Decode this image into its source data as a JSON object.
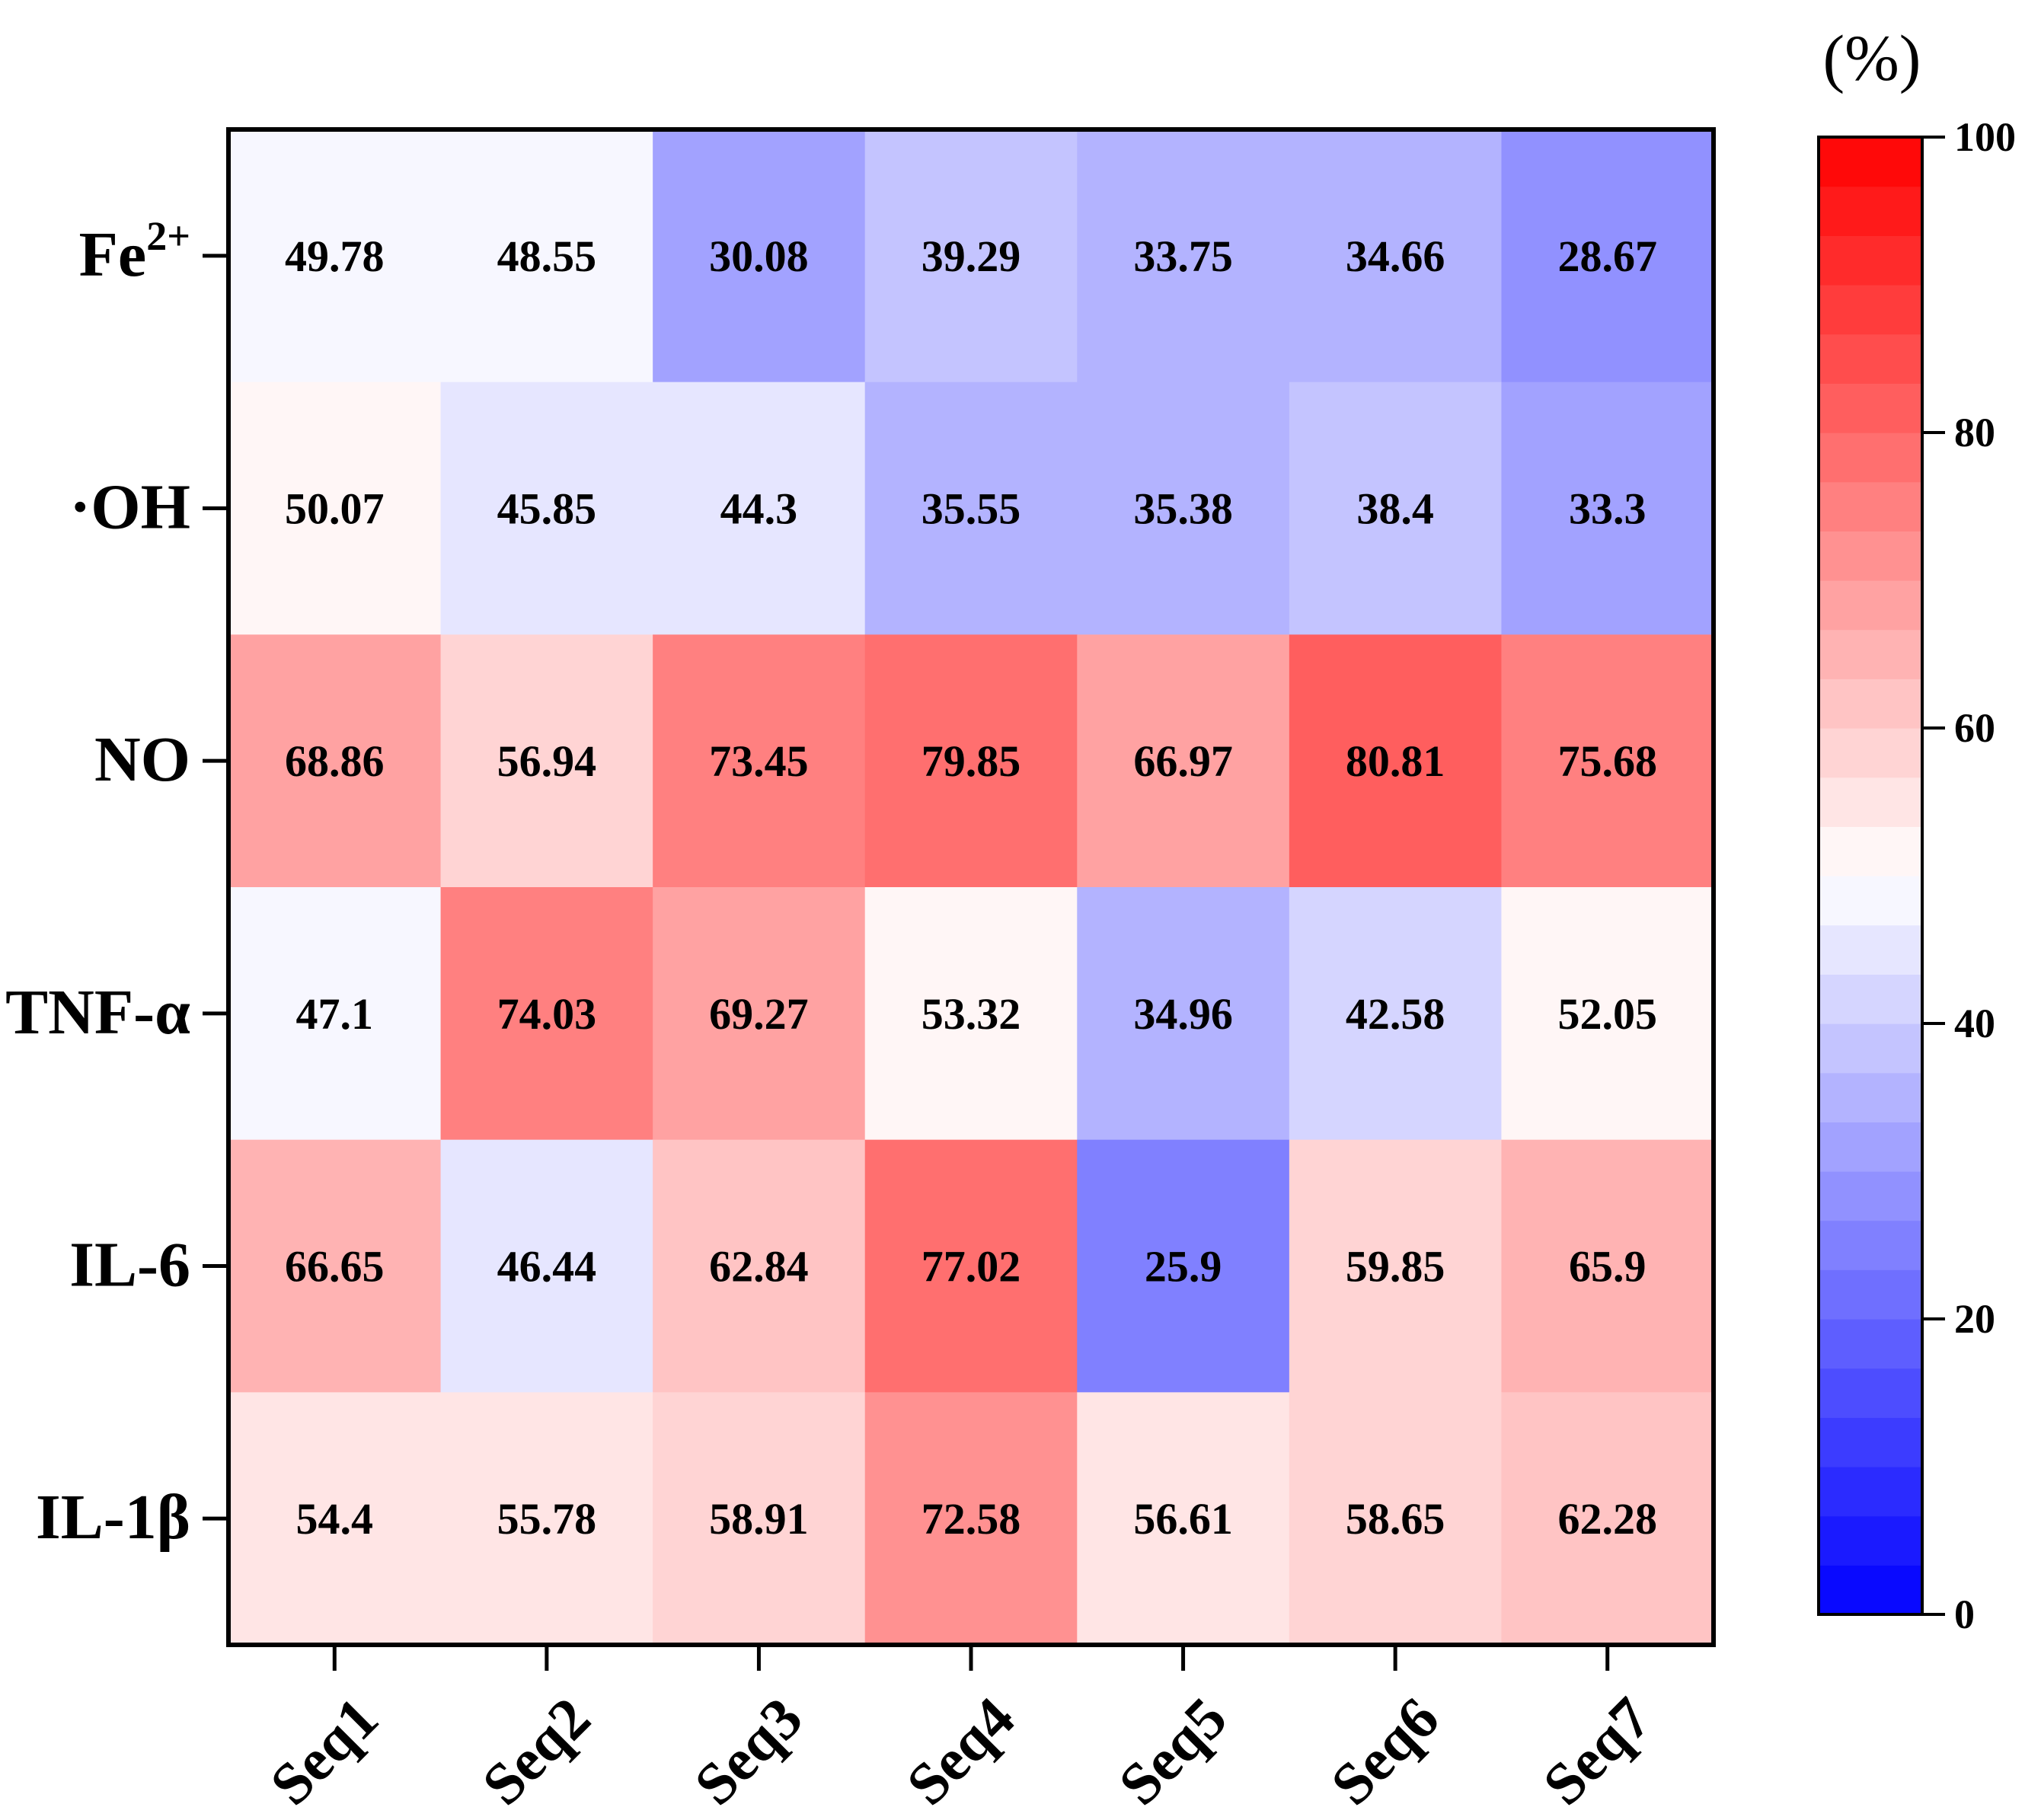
{
  "chart_data": {
    "type": "heatmap",
    "rows": [
      "Fe2+",
      "·OH",
      "NO",
      "TNF-α",
      "IL-6",
      "IL-1β"
    ],
    "row_labels": [
      {
        "base": "Fe",
        "sup": "2+"
      },
      {
        "base": "·OH",
        "sup": ""
      },
      {
        "base": "NO",
        "sup": ""
      },
      {
        "base": "TNF-α",
        "sup": ""
      },
      {
        "base": "IL-6",
        "sup": ""
      },
      {
        "base": "IL-1β",
        "sup": ""
      }
    ],
    "columns": [
      "Seq1",
      "Seq2",
      "Seq3",
      "Seq4",
      "Seq5",
      "Seq6",
      "Seq7"
    ],
    "values": [
      [
        49.78,
        48.55,
        30.08,
        39.29,
        33.75,
        34.66,
        28.67
      ],
      [
        50.07,
        45.85,
        44.3,
        35.55,
        35.38,
        38.4,
        33.3
      ],
      [
        68.86,
        56.94,
        73.45,
        79.85,
        66.97,
        80.81,
        75.68
      ],
      [
        47.1,
        74.03,
        69.27,
        53.32,
        34.96,
        42.58,
        52.05
      ],
      [
        66.65,
        46.44,
        62.84,
        77.02,
        25.9,
        59.85,
        65.9
      ],
      [
        54.4,
        55.78,
        58.91,
        72.58,
        56.61,
        58.65,
        62.28
      ]
    ],
    "value_labels": [
      [
        "49.78",
        "48.55",
        "30.08",
        "39.29",
        "33.75",
        "34.66",
        "28.67"
      ],
      [
        "50.07",
        "45.85",
        "44.3",
        "35.55",
        "35.38",
        "38.4",
        "33.3"
      ],
      [
        "68.86",
        "56.94",
        "73.45",
        "79.85",
        "66.97",
        "80.81",
        "75.68"
      ],
      [
        "47.1",
        "74.03",
        "69.27",
        "53.32",
        "34.96",
        "42.58",
        "52.05"
      ],
      [
        "66.65",
        "46.44",
        "62.84",
        "77.02",
        "25.9",
        "59.85",
        "65.9"
      ],
      [
        "54.4",
        "55.78",
        "58.91",
        "72.58",
        "56.61",
        "58.65",
        "62.28"
      ]
    ],
    "colorbar": {
      "min": 0,
      "max": 100,
      "steps": 30,
      "ticks": [
        "0",
        "20",
        "40",
        "60",
        "80",
        "100"
      ],
      "unit_label": "(%)",
      "low_color": "#0000ff",
      "mid_color": "#ffffff",
      "high_color": "#ff0000"
    }
  }
}
